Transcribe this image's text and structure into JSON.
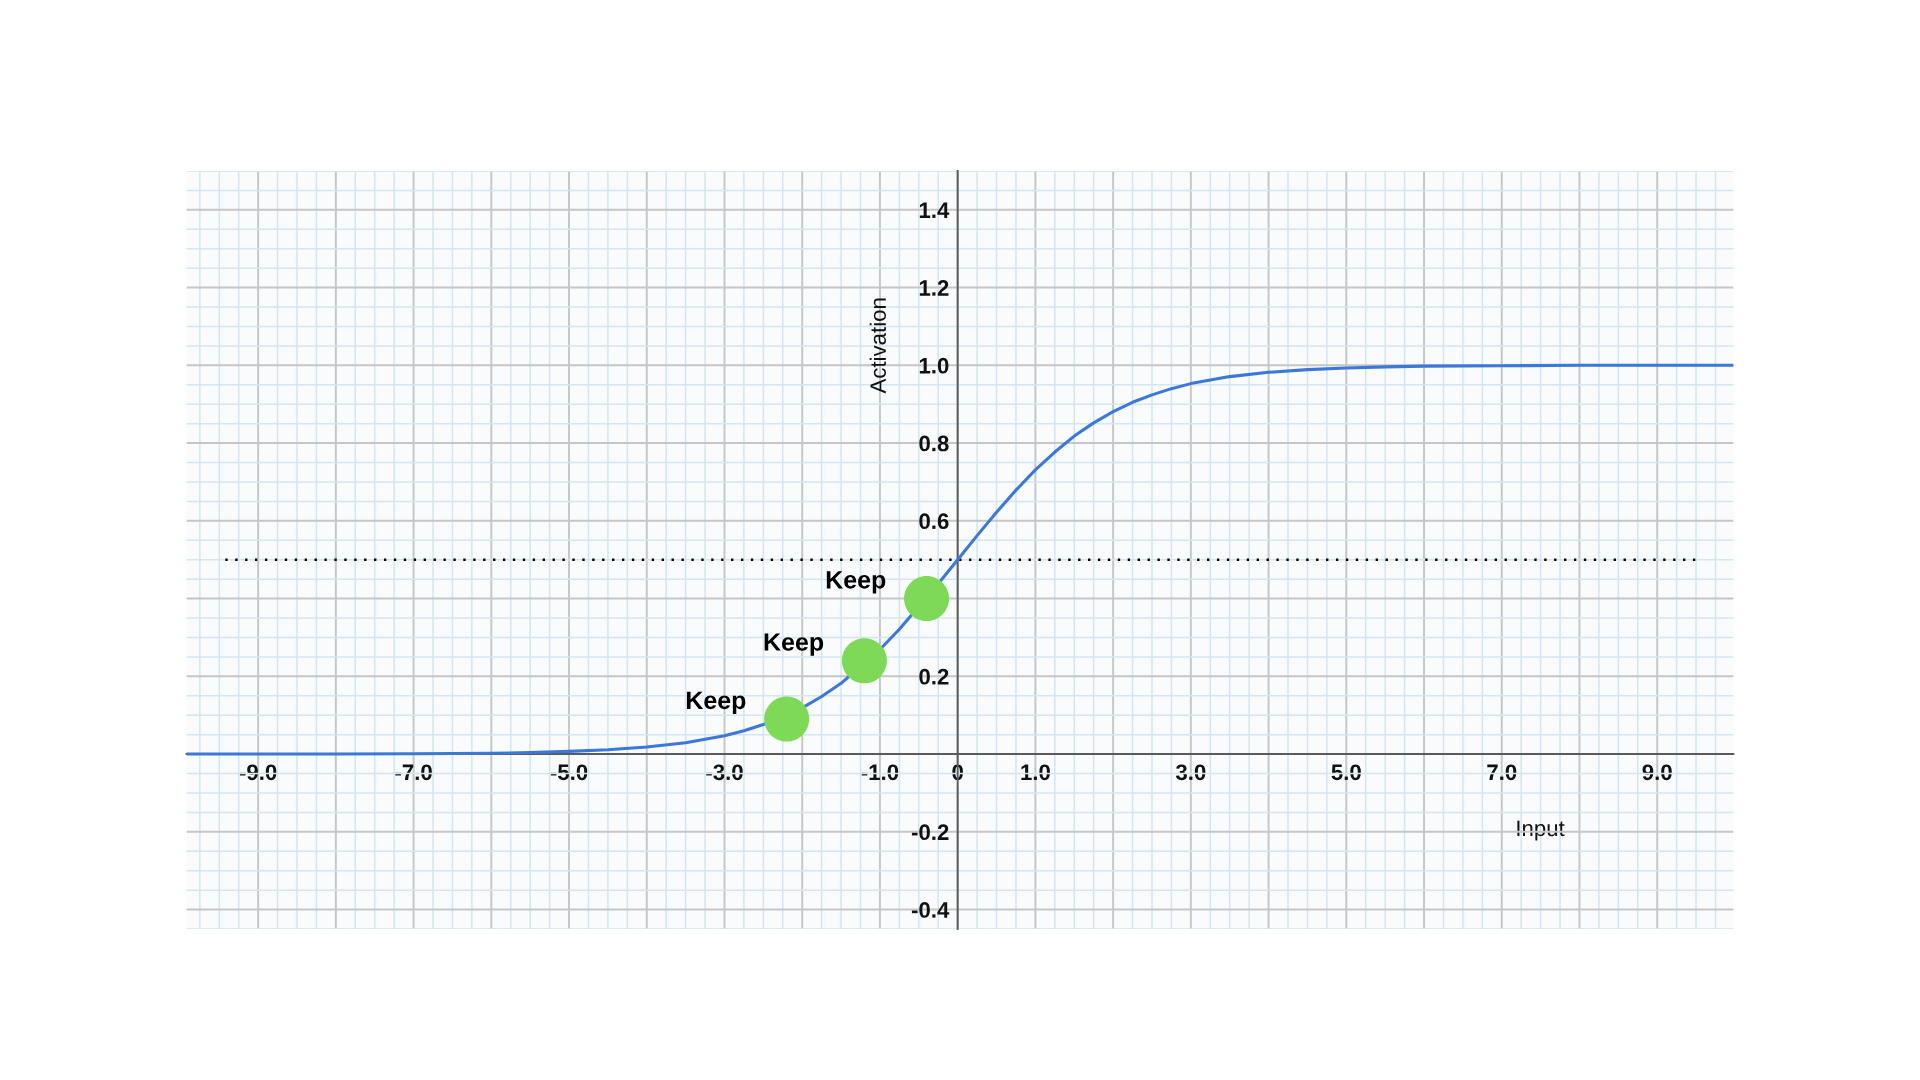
{
  "chart_data": {
    "type": "line",
    "xlabel": "Input",
    "ylabel": "Activation",
    "xlim": [
      -9.92,
      9.98
    ],
    "ylim": [
      -0.45,
      1.5
    ],
    "xticks": [
      {
        "value": -9,
        "label": "-9.0"
      },
      {
        "value": -8,
        "label": null
      },
      {
        "value": -7,
        "label": "-7.0"
      },
      {
        "value": -6,
        "label": null
      },
      {
        "value": -5,
        "label": "-5.0"
      },
      {
        "value": -4,
        "label": null
      },
      {
        "value": -3,
        "label": "-3.0"
      },
      {
        "value": -2,
        "label": null
      },
      {
        "value": -1,
        "label": "-1.0"
      },
      {
        "value": 0,
        "label": "0"
      },
      {
        "value": 1,
        "label": "1.0"
      },
      {
        "value": 2,
        "label": null
      },
      {
        "value": 3,
        "label": "3.0"
      },
      {
        "value": 4,
        "label": null
      },
      {
        "value": 5,
        "label": "5.0"
      },
      {
        "value": 6,
        "label": null
      },
      {
        "value": 7,
        "label": "7.0"
      },
      {
        "value": 8,
        "label": null
      },
      {
        "value": 9,
        "label": "9.0"
      }
    ],
    "yticks": [
      -0.4,
      -0.2,
      {
        "value": 0,
        "label": null
      },
      0.2,
      {
        "value": 0.4,
        "label": null
      },
      0.6,
      0.8,
      {
        "value": 1,
        "label": "1.0"
      },
      1.2,
      1.4
    ],
    "grid": true,
    "series": [
      {
        "color": "#3c78d8",
        "line_style": "solid",
        "marker": "none",
        "x": [
          -9.92,
          -9,
          -8,
          -7,
          -6,
          -5.5,
          -5,
          -4.5,
          -4,
          -3.5,
          -3,
          -2.75,
          -2.5,
          -2,
          -1.75,
          -1.5,
          -1,
          -0.75,
          -0.25,
          0,
          0.25,
          0.5,
          0.75,
          1,
          1.25,
          1.5,
          1.75,
          2,
          2.25,
          2.5,
          2.75,
          3,
          3.5,
          4,
          4.5,
          5,
          5.5,
          6,
          7,
          8,
          9,
          9.98
        ],
        "values": [
          0.0,
          0.0,
          0.0,
          0.001,
          0.002,
          0.004,
          0.007,
          0.011,
          0.018,
          0.029,
          0.047,
          0.06,
          0.076,
          0.119,
          0.148,
          0.182,
          0.269,
          0.321,
          0.438,
          0.5,
          0.562,
          0.622,
          0.679,
          0.731,
          0.777,
          0.818,
          0.852,
          0.881,
          0.905,
          0.924,
          0.94,
          0.953,
          0.971,
          0.982,
          0.989,
          0.993,
          0.996,
          0.998,
          0.999,
          1.0,
          1.0,
          1.0
        ]
      },
      {
        "type": "scatter",
        "color": "#7ed957",
        "marker": "circle",
        "x": [
          -2.2,
          -1.2,
          -0.4
        ],
        "values": [
          0.09,
          0.24,
          0.4
        ]
      }
    ],
    "ref_lines": [
      {
        "axis": "y",
        "value": 0.5,
        "color": "#000000",
        "line_style": "dotted"
      }
    ],
    "annotations": [
      {
        "text": "Keep",
        "x": -2.2,
        "y": 0.09
      },
      {
        "text": "Keep",
        "x": -1.2,
        "y": 0.24
      },
      {
        "text": "Keep",
        "x": -0.4,
        "y": 0.4
      }
    ]
  }
}
